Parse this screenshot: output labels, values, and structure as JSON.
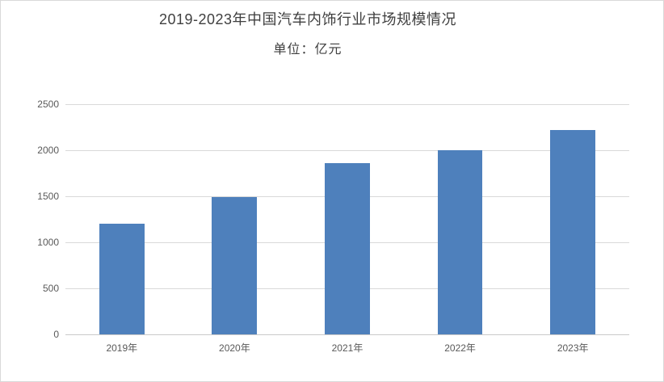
{
  "page": {
    "background_color": "#ffffff",
    "border_color": "#d9d9d9"
  },
  "header": {
    "title": "2019-2023年中国汽车内饰行业市场规模情况",
    "subtitle": "单位：亿元"
  },
  "chart_data": {
    "type": "bar",
    "title": "2019-2023年中国汽车内饰行业市场规模情况",
    "subtitle": "单位：亿元",
    "unit": "亿元",
    "categories": [
      "2019年",
      "2020年",
      "2021年",
      "2022年",
      "2023年"
    ],
    "values": [
      1200,
      1490,
      1860,
      2000,
      2220
    ],
    "ylim": [
      0,
      2500
    ],
    "yticks": [
      0,
      500,
      1000,
      1500,
      2000,
      2500
    ],
    "grid": true,
    "legend": "none",
    "bar_color": "#4e80bc",
    "gridline_color": "#d9d9d9",
    "axis_line_color": "#c9c9c9",
    "tick_label_color": "#595959",
    "title_color": "#3f3f3f"
  }
}
